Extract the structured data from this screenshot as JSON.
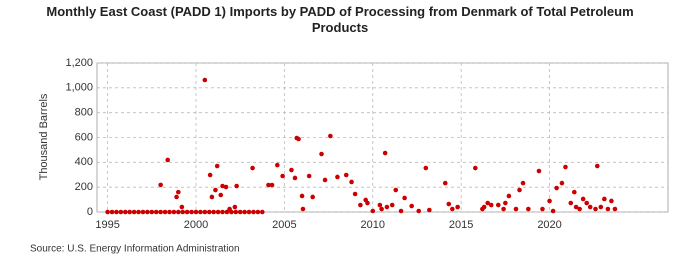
{
  "chart_data": {
    "type": "scatter",
    "title": "Monthly East Coast (PADD 1) Imports by PADD of Processing from Denmark of Total Petroleum Products",
    "y_label": "Thousand Barrels",
    "source": "Source: U.S. Energy Information Administration",
    "color": "#cc0000",
    "grid": true,
    "xlim": [
      1994.4,
      2026.7
    ],
    "ylim": [
      0,
      1200
    ],
    "xticks": [
      1995,
      2000,
      2005,
      2010,
      2015,
      2020
    ],
    "yticks": [
      0,
      200,
      400,
      600,
      800,
      {
        "value": 1000,
        "label": "1,000"
      },
      {
        "value": 1200,
        "label": "1,200"
      }
    ],
    "x": [
      1995.0,
      1995.25,
      1995.5,
      1995.75,
      1996.0,
      1996.25,
      1996.5,
      1996.75,
      1997.0,
      1997.25,
      1997.5,
      1997.75,
      1998.0,
      1998.25,
      1998.5,
      1998.75,
      1999.0,
      1999.25,
      1999.5,
      1999.75,
      2000.0,
      2000.25,
      2000.5,
      2000.75,
      2001.0,
      2001.25,
      2001.5,
      2001.75,
      2002.0,
      2002.25,
      2002.5,
      2002.75,
      2003.0,
      2003.25,
      2003.5,
      2003.75,
      1998.0,
      1998.4,
      1998.9,
      1999.0,
      1999.2,
      2000.5,
      2000.8,
      2000.9,
      2001.1,
      2001.2,
      2001.4,
      2001.5,
      2001.7,
      2001.9,
      2002.2,
      2002.3,
      2003.2,
      2004.1,
      2004.3,
      2004.6,
      2004.9,
      2005.4,
      2005.6,
      2005.7,
      2005.8,
      2006.0,
      2006.05,
      2006.4,
      2006.6,
      2007.1,
      2007.3,
      2007.6,
      2008.0,
      2008.5,
      2008.8,
      2009.0,
      2009.3,
      2009.6,
      2009.7,
      2010.0,
      2010.4,
      2010.5,
      2010.7,
      2010.8,
      2011.1,
      2011.3,
      2011.6,
      2011.8,
      2012.2,
      2012.6,
      2013.0,
      2013.2,
      2014.1,
      2014.3,
      2014.5,
      2014.8,
      2015.8,
      2016.2,
      2016.3,
      2016.5,
      2016.7,
      2017.1,
      2017.4,
      2017.5,
      2017.7,
      2018.1,
      2018.3,
      2018.5,
      2018.8,
      2019.4,
      2019.6,
      2020.0,
      2020.2,
      2020.4,
      2020.7,
      2020.9,
      2021.2,
      2021.4,
      2021.5,
      2021.7,
      2021.9,
      2022.1,
      2022.3,
      2022.6,
      2022.7,
      2022.9,
      2023.1,
      2023.3,
      2023.5,
      2023.7
    ],
    "values": [
      0,
      0,
      0,
      0,
      0,
      0,
      0,
      0,
      0,
      0,
      0,
      0,
      0,
      0,
      0,
      0,
      0,
      0,
      0,
      0,
      0,
      0,
      0,
      0,
      0,
      0,
      0,
      0,
      0,
      0,
      0,
      0,
      0,
      0,
      0,
      0,
      218,
      419,
      121,
      160,
      40,
      1063,
      298,
      121,
      177,
      370,
      137,
      209,
      201,
      24,
      40,
      209,
      354,
      217,
      217,
      378,
      290,
      338,
      274,
      596,
      588,
      129,
      24,
      290,
      121,
      467,
      258,
      612,
      282,
      298,
      242,
      145,
      56,
      97,
      72,
      8,
      56,
      24,
      475,
      40,
      56,
      177,
      8,
      113,
      48,
      8,
      354,
      16,
      233,
      64,
      24,
      40,
      354,
      24,
      40,
      72,
      56,
      56,
      24,
      72,
      129,
      24,
      177,
      233,
      24,
      330,
      24,
      89,
      8,
      193,
      233,
      362,
      72,
      160,
      40,
      24,
      105,
      72,
      40,
      24,
      370,
      40,
      105,
      24,
      89,
      24
    ]
  }
}
